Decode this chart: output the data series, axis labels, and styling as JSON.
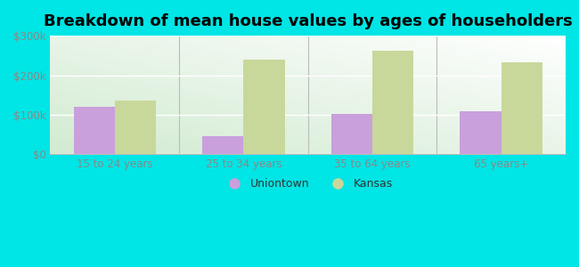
{
  "title": "Breakdown of mean house values by ages of householders",
  "categories": [
    "15 to 24 years",
    "25 to 34 years",
    "35 to 64 years",
    "65 years+"
  ],
  "uniontown_values": [
    120000,
    45000,
    102000,
    108000
  ],
  "kansas_values": [
    135000,
    240000,
    262000,
    232000
  ],
  "uniontown_color": "#c9a0dc",
  "kansas_color": "#c8d89a",
  "outer_background": "#00e5e5",
  "ylim": [
    0,
    300000
  ],
  "yticks": [
    0,
    100000,
    200000,
    300000
  ],
  "ytick_labels": [
    "$0",
    "$100k",
    "$200k",
    "$300k"
  ],
  "legend_labels": [
    "Uniontown",
    "Kansas"
  ],
  "title_fontsize": 13,
  "bar_width": 0.32,
  "tick_color": "#888888",
  "tick_fontsize": 8.5
}
